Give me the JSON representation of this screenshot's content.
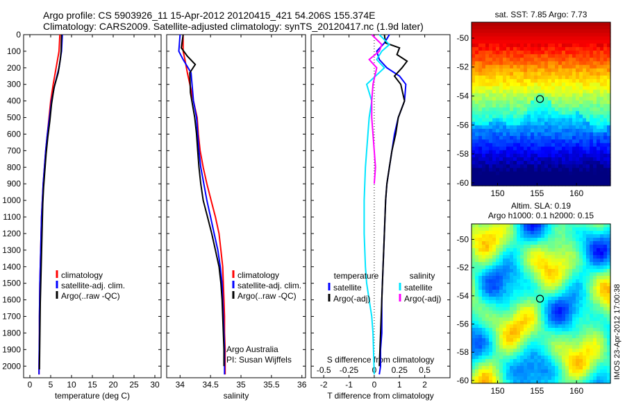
{
  "header": {
    "line1": "Argo profile: CS 5903926_11 15-Apr-2012 20120415_421 54.206S 155.374E",
    "line2": "Climatology: CARS2009. Satellite-adjusted climatology: synTS_20120417.nc (1.9d later)"
  },
  "credit": "Argo Australia",
  "pi": "PI: Susan Wijffels",
  "watermark": "IMOS 23-Apr-2012 17:00:38",
  "colors": {
    "clim": "#ff0000",
    "sat": "#0000ff",
    "argo": "#000000",
    "sat_s": "#00e5ff",
    "argo_s": "#ff00ff"
  },
  "chart_data": [
    {
      "id": "temperature",
      "type": "line",
      "xlabel": "temperature (deg C)",
      "xticks": [
        0,
        5,
        10,
        15,
        20,
        25,
        30
      ],
      "xlim": [
        -1.5,
        31.5
      ],
      "ylim": [
        2070,
        0
      ],
      "yticks": [
        0,
        100,
        200,
        300,
        400,
        500,
        600,
        700,
        800,
        900,
        1000,
        1100,
        1200,
        1300,
        1400,
        1500,
        1600,
        1700,
        1800,
        1900,
        2000
      ],
      "legend": [
        "climatology",
        "satellite-adj. clim.",
        "Argo(..raw -QC)"
      ],
      "series": [
        {
          "name": "climatology",
          "color": "#ff0000",
          "x": [
            7.2,
            7.0,
            6.3,
            5.6,
            5.0,
            4.6,
            4.2,
            3.8,
            3.5,
            3.2,
            3.0,
            2.8,
            2.7,
            2.6,
            2.5,
            2.4,
            2.35,
            2.3,
            2.3,
            2.25,
            2.2,
            2.2
          ],
          "y": [
            0,
            100,
            200,
            300,
            400,
            500,
            600,
            700,
            800,
            900,
            1000,
            1100,
            1200,
            1300,
            1400,
            1500,
            1600,
            1700,
            1800,
            1900,
            2000,
            2050
          ]
        },
        {
          "name": "satellite-adj. clim.",
          "color": "#0000ff",
          "x": [
            7.8,
            7.6,
            7.0,
            6.0,
            5.2,
            4.7,
            4.2,
            3.8,
            3.5,
            3.2,
            3.0,
            2.8,
            2.7,
            2.6,
            2.5,
            2.4,
            2.35,
            2.3,
            2.3,
            2.25,
            2.2,
            2.2
          ],
          "y": [
            0,
            100,
            200,
            300,
            400,
            500,
            600,
            700,
            800,
            900,
            1000,
            1100,
            1200,
            1300,
            1400,
            1500,
            1600,
            1700,
            1800,
            1900,
            2000,
            2050
          ]
        },
        {
          "name": "Argo(..raw -QC)",
          "color": "#000000",
          "x": [
            7.6,
            7.5,
            7.3,
            6.8,
            5.8,
            5.2,
            4.8,
            4.3,
            3.9,
            3.6,
            3.3,
            3.1,
            3.0,
            2.9,
            2.8,
            2.7,
            2.6,
            2.5,
            2.45,
            2.4,
            2.35,
            2.3
          ],
          "y": [
            0,
            100,
            150,
            230,
            320,
            420,
            520,
            620,
            720,
            820,
            920,
            1020,
            1120,
            1220,
            1320,
            1420,
            1520,
            1620,
            1720,
            1820,
            1920,
            2020
          ]
        }
      ]
    },
    {
      "id": "salinity",
      "type": "line",
      "xlabel": "salinity",
      "xticks": [
        34,
        34.5,
        35,
        35.5,
        36
      ],
      "xlim": [
        33.78,
        36.06
      ],
      "ylim": [
        2070,
        0
      ],
      "legend": [
        "climatology",
        "satellite-adj. clim.",
        "Argo(..raw -QC)"
      ],
      "series": [
        {
          "name": "climatology",
          "color": "#ff0000",
          "x": [
            34.05,
            34.05,
            34.08,
            34.12,
            34.22,
            34.28,
            34.3,
            34.33,
            34.38,
            34.44,
            34.51,
            34.58,
            34.64,
            34.67,
            34.7,
            34.71,
            34.72,
            34.73,
            34.73,
            34.74,
            34.74,
            34.74
          ],
          "y": [
            0,
            100,
            150,
            230,
            400,
            500,
            600,
            700,
            800,
            900,
            1000,
            1100,
            1200,
            1300,
            1400,
            1500,
            1600,
            1700,
            1800,
            1900,
            2000,
            2050
          ]
        },
        {
          "name": "satellite-adj. clim.",
          "color": "#0000ff",
          "x": [
            34.0,
            33.98,
            34.05,
            34.18,
            34.22,
            34.27,
            34.29,
            34.31,
            34.34,
            34.39,
            34.44,
            34.5,
            34.56,
            34.62,
            34.66,
            34.69,
            34.7,
            34.71,
            34.72,
            34.73,
            34.73,
            34.73
          ],
          "y": [
            0,
            100,
            150,
            230,
            400,
            500,
            600,
            700,
            800,
            900,
            1000,
            1100,
            1200,
            1300,
            1400,
            1500,
            1600,
            1700,
            1800,
            1900,
            2000,
            2050
          ]
        },
        {
          "name": "Argo(..raw -QC)",
          "color": "#000000",
          "x": [
            34.05,
            34.02,
            34.12,
            34.25,
            34.16,
            34.17,
            34.24,
            34.27,
            34.29,
            34.31,
            34.34,
            34.38,
            34.45,
            34.52,
            34.58,
            34.64,
            34.67,
            34.69,
            34.7,
            34.71,
            34.72,
            34.72
          ],
          "y": [
            0,
            80,
            130,
            180,
            230,
            350,
            500,
            600,
            700,
            800,
            900,
            1000,
            1100,
            1200,
            1300,
            1400,
            1500,
            1600,
            1700,
            1800,
            1900,
            2000
          ]
        }
      ]
    },
    {
      "id": "differences",
      "type": "line",
      "xlabel": "T difference from climatology",
      "xlabel_top": "S difference from climatology",
      "xticks": [
        -2,
        -1,
        0,
        1,
        2
      ],
      "xticks_top": [
        "-0.5",
        "-0.25",
        "0",
        "0.25",
        "0.5"
      ],
      "xlim": [
        -2.5,
        3.0
      ],
      "ylim": [
        2070,
        0
      ],
      "legend": {
        "temperature": [
          "satellite",
          "Argo(-adj)"
        ],
        "salinity": [
          "satellite",
          "Argo(-adj)"
        ]
      },
      "legend_headers": [
        "temperature",
        "salinity"
      ],
      "series": [
        {
          "name": "satellite",
          "group": "temperature",
          "color": "#0000ff",
          "x": [
            0.6,
            0.4,
            0.1,
            0.2,
            0.5,
            1.0,
            1.25,
            1.2,
            0.95,
            0.8,
            0.7,
            0.6,
            0.5,
            0.45,
            0.4,
            0.35,
            0.3,
            0.3,
            0.25,
            0.25,
            0.2
          ],
          "y": [
            0,
            50,
            100,
            150,
            200,
            250,
            300,
            400,
            500,
            600,
            700,
            800,
            900,
            1000,
            1200,
            1400,
            1600,
            1800,
            1900,
            2000,
            2050
          ]
        },
        {
          "name": "Argo(-adj)",
          "group": "temperature",
          "color": "#000000",
          "x": [
            0.4,
            0.45,
            1.0,
            0.9,
            1.3,
            1.1,
            0.8,
            1.05,
            1.2,
            0.95,
            0.85,
            0.7,
            0.6,
            0.5,
            0.45,
            0.4,
            0.35,
            0.3,
            0.25,
            0.2
          ],
          "y": [
            0,
            50,
            80,
            120,
            160,
            200,
            250,
            300,
            400,
            500,
            600,
            700,
            800,
            900,
            1000,
            1200,
            1400,
            1600,
            1800,
            2000
          ]
        },
        {
          "name": "satellite",
          "group": "salinity",
          "color": "#00e5ff",
          "x": [
            0.2,
            0.6,
            0.3,
            0.1,
            0.4,
            -0.3,
            -0.1,
            -0.2,
            -0.25,
            -0.3,
            -0.35,
            -0.4,
            -0.4,
            -0.35,
            -0.3,
            -0.2,
            -0.1,
            -0.05,
            0.0
          ],
          "y": [
            0,
            60,
            100,
            150,
            200,
            300,
            400,
            500,
            600,
            700,
            800,
            1000,
            1200,
            1400,
            1500,
            1600,
            1700,
            1800,
            2050
          ]
        },
        {
          "name": "Argo(-adj)",
          "group": "salinity",
          "color": "#ff00ff",
          "x": [
            -0.1,
            0.3,
            0.2,
            -0.2,
            0.1,
            -0.05,
            -0.1,
            -0.1,
            -0.05,
            0.0,
            0.05,
            0.0
          ],
          "y": [
            0,
            60,
            100,
            150,
            200,
            300,
            400,
            500,
            600,
            700,
            800,
            900
          ]
        }
      ]
    },
    {
      "id": "sst_map",
      "type": "heatmap",
      "title": "sat. SST: 7.85 Argo: 7.73",
      "xticks": [
        150,
        155,
        160
      ],
      "yticks": [
        "-50",
        "-52",
        "-54",
        "-56",
        "-58",
        "-60"
      ],
      "xlim": [
        146.7,
        164.3
      ],
      "ylim": [
        -60.2,
        -48.9
      ],
      "marker": {
        "lon": 155.374,
        "lat": -54.206
      }
    },
    {
      "id": "sla_map",
      "type": "heatmap",
      "title": "Altim. SLA: 0.19",
      "subtitle": "Argo h1000: 0.1 h2000: 0.15",
      "xticks": [
        150,
        155,
        160
      ],
      "yticks": [
        "-50",
        "-52",
        "-54",
        "-56",
        "-58",
        "-60"
      ],
      "xlim": [
        146.7,
        164.3
      ],
      "ylim": [
        -60.2,
        -48.9
      ],
      "marker": {
        "lon": 155.374,
        "lat": -54.206
      }
    }
  ]
}
